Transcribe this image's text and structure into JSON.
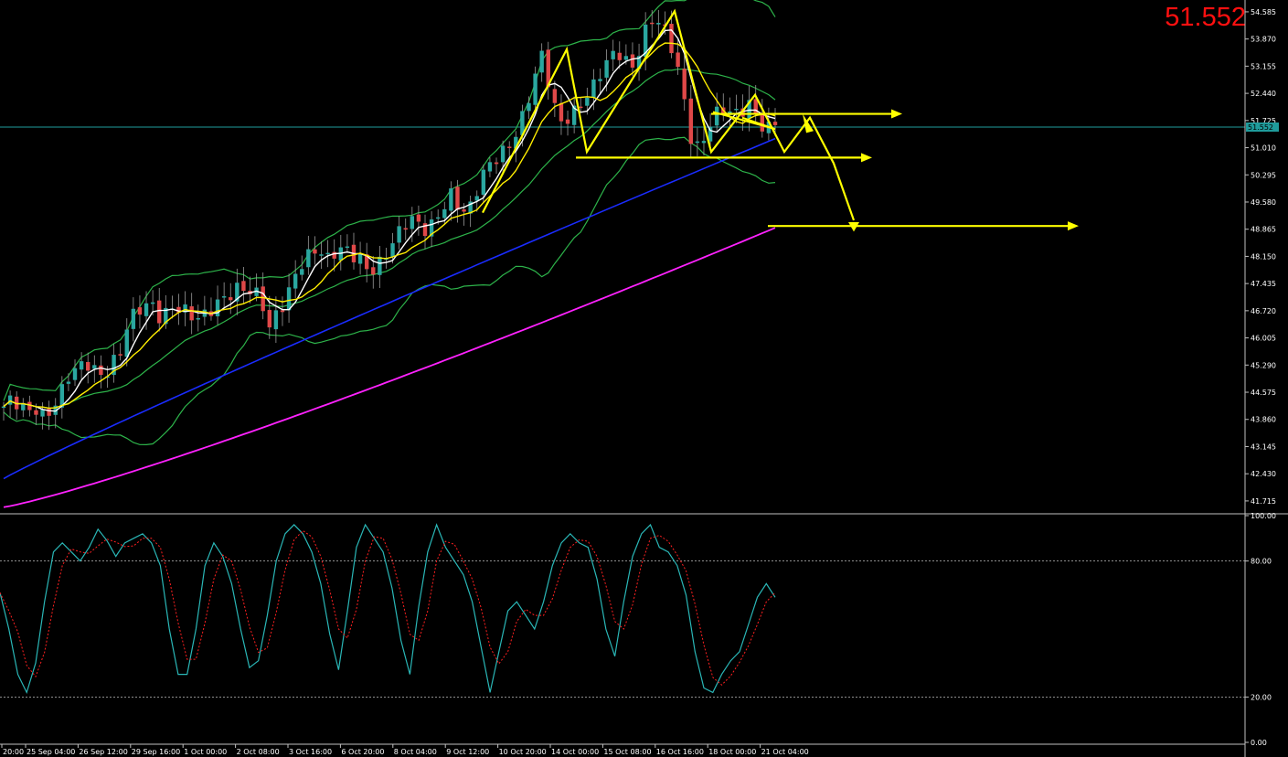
{
  "current_price_label": "51.552",
  "colors": {
    "background": "#000000",
    "axis_text": "#ffffff",
    "price_tag": "#ff1010",
    "bollinger": "#2db34a",
    "ma_fast_white": "#ffffff",
    "ma_yellow": "#ffee00",
    "ma_blue": "#1a2cff",
    "ma_magenta": "#ff22ff",
    "candle_up": "#2aa7a0",
    "candle_down": "#e04848",
    "annotation": "#ffff00",
    "stoch_main": "#2ab7b7",
    "stoch_signal": "#ff2020",
    "current_price_line": "#1f9b9b"
  },
  "price_axis": {
    "ticks": [
      "54.585",
      "53.870",
      "53.155",
      "52.440",
      "51.725",
      "51.010",
      "50.295",
      "49.580",
      "48.865",
      "48.150",
      "47.435",
      "46.720",
      "46.005",
      "45.290",
      "44.575",
      "43.860",
      "43.145",
      "42.430",
      "41.715"
    ],
    "current_marker": "51.552"
  },
  "oscillator_axis": {
    "ticks": [
      "100.00",
      "80.00",
      "20.00",
      "0.00"
    ]
  },
  "time_axis": {
    "labels": [
      "20:00",
      "25 Sep 04:00",
      "26 Sep 12:00",
      "29 Sep 16:00",
      "1 Oct 00:00",
      "2 Oct 08:00",
      "3 Oct 16:00",
      "6 Oct 20:00",
      "8 Oct 04:00",
      "9 Oct 12:00",
      "10 Oct 20:00",
      "14 Oct 00:00",
      "15 Oct 08:00",
      "16 Oct 16:00",
      "18 Oct 00:00",
      "21 Oct 04:00"
    ]
  },
  "chart_data": [
    {
      "type": "candlestick",
      "title": "",
      "ylim": [
        41.4,
        54.8
      ],
      "bars": 120,
      "close_path": [
        44.2,
        44.3,
        44.1,
        44.0,
        44.2,
        44.0,
        44.3,
        44.6,
        45.0,
        45.1,
        45.3,
        45.2,
        45.1,
        45.4,
        45.6,
        46.3,
        46.6,
        46.8,
        46.9,
        46.6,
        46.9,
        46.8,
        46.6,
        46.4,
        46.5,
        46.8,
        47.1,
        47.2,
        47.3,
        47.2,
        47.1,
        47.0,
        46.3,
        46.8,
        47.1,
        47.6,
        47.9,
        48.1,
        48.3,
        48.1,
        48.4,
        48.5,
        48.2,
        48.0,
        47.6,
        47.8,
        48.2,
        48.7,
        49.0,
        49.2,
        48.9,
        48.7,
        49.0,
        49.5,
        49.9,
        49.5,
        49.3,
        49.8,
        50.3,
        50.6,
        50.9,
        51.2,
        51.6,
        52.1,
        52.8,
        53.4,
        52.3,
        51.7,
        51.9,
        52.1,
        52.3,
        52.5,
        52.9,
        53.3,
        53.6,
        53.4,
        53.2,
        53.9,
        54.3,
        54.2,
        53.9,
        53.4,
        52.4,
        51.2,
        51.0,
        51.5,
        51.8,
        52.0,
        51.9,
        52.1,
        52.3,
        51.7,
        51.4,
        51.55
      ],
      "moving_averages": [
        {
          "name": "",
          "color_key": "ma_fast_white"
        },
        {
          "name": "",
          "color_key": "ma_yellow"
        },
        {
          "name": "",
          "color_key": "ma_blue"
        },
        {
          "name": "",
          "color_key": "ma_magenta"
        }
      ],
      "bollinger_bands": true,
      "horizontal_line_price": 51.552,
      "annotations": {
        "resistance_line_price": 51.9,
        "support_line_price": 50.75,
        "target_line_price": 48.95
      }
    },
    {
      "type": "line",
      "title": "",
      "ylim": [
        0,
        100
      ],
      "levels": [
        80,
        20
      ],
      "series": [
        {
          "role": "main",
          "color_key": "stoch_main"
        },
        {
          "role": "signal",
          "color_key": "stoch_signal"
        }
      ],
      "main_values": [
        66,
        50,
        30,
        22,
        35,
        62,
        84,
        88,
        84,
        80,
        86,
        94,
        89,
        82,
        88,
        90,
        92,
        88,
        78,
        50,
        30,
        30,
        50,
        78,
        88,
        82,
        70,
        50,
        33,
        36,
        56,
        80,
        92,
        96,
        92,
        84,
        70,
        48,
        32,
        58,
        86,
        96,
        90,
        84,
        68,
        45,
        30,
        60,
        84,
        96,
        86,
        80,
        74,
        62,
        42,
        22,
        40,
        58,
        62,
        56,
        50,
        62,
        78,
        88,
        92,
        88,
        86,
        72,
        50,
        38,
        62,
        82,
        92,
        96,
        86,
        84,
        78,
        65,
        40,
        24,
        22,
        30,
        36,
        40,
        52,
        64,
        70,
        64
      ]
    }
  ]
}
